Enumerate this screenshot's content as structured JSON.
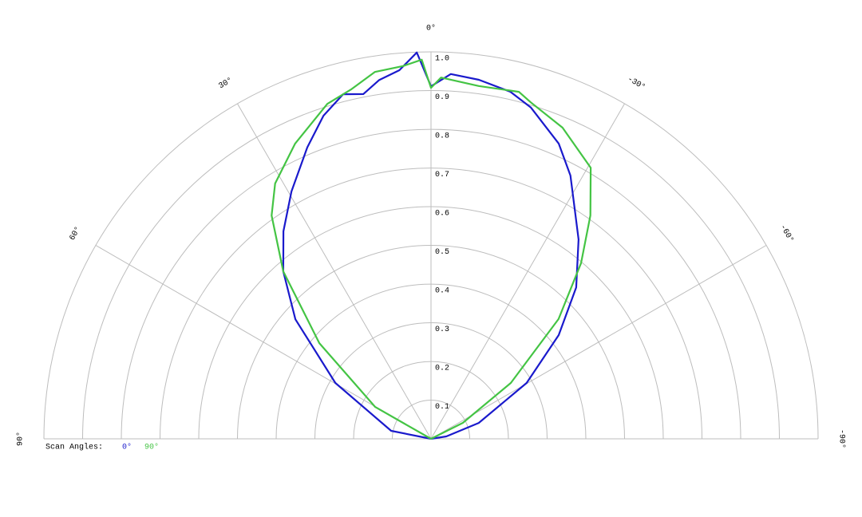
{
  "chart_data": {
    "type": "polar",
    "thetalim": [
      -90,
      90
    ],
    "thetaticks": [
      {
        "value": 90,
        "label": "90°"
      },
      {
        "value": 60,
        "label": "60°"
      },
      {
        "value": 30,
        "label": "30°"
      },
      {
        "value": 0,
        "label": "0°"
      },
      {
        "value": -30,
        "label": "-30°"
      },
      {
        "value": -60,
        "label": "-60°"
      },
      {
        "value": -90,
        "label": "-90°"
      }
    ],
    "rlim": [
      0,
      1
    ],
    "rticks": [
      0.1,
      0.2,
      0.3,
      0.4,
      0.5,
      0.6,
      0.7,
      0.8,
      0.9,
      {
        "value": 1,
        "label": "1.0"
      }
    ],
    "grid": true,
    "legend_title": "Scan Angles:",
    "series": [
      {
        "name": "0°",
        "color": "#1a1acc",
        "theta": [
          -90,
          -81,
          -71.6,
          -59.7,
          -50.9,
          -43.8,
          -36.5,
          -27.9,
          -23.4,
          -16.8,
          -12.9,
          -7.6,
          -3.1,
          0,
          2.1,
          4.9,
          8.2,
          11.1,
          14.3,
          18.4,
          23,
          29.4,
          35.4,
          41.4,
          48.6,
          59.7,
          78.7,
          90
        ],
        "values": [
          0,
          0.04,
          0.13,
          0.286,
          0.425,
          0.542,
          0.641,
          0.77,
          0.831,
          0.894,
          0.92,
          0.936,
          0.944,
          0.911,
          0.999,
          0.956,
          0.937,
          0.908,
          0.919,
          0.88,
          0.818,
          0.734,
          0.658,
          0.577,
          0.467,
          0.286,
          0.105,
          0
        ]
      },
      {
        "name": "90°",
        "color": "#44c444",
        "theta": [
          -90,
          -63.4,
          -55,
          -46.8,
          -40.5,
          -35.5,
          -30.5,
          -22.9,
          -16.5,
          -14.2,
          -7.7,
          -1.6,
          0,
          1.4,
          4.3,
          8.7,
          12.9,
          17.2,
          24.7,
          31.4,
          35.5,
          41.4,
          49.4,
          60.3,
          90
        ],
        "values": [
          0,
          0.092,
          0.252,
          0.452,
          0.597,
          0.709,
          0.813,
          0.873,
          0.907,
          0.925,
          0.92,
          0.934,
          0.907,
          0.98,
          0.966,
          0.959,
          0.926,
          0.906,
          0.84,
          0.773,
          0.709,
          0.577,
          0.38,
          0.166,
          0
        ]
      }
    ]
  }
}
